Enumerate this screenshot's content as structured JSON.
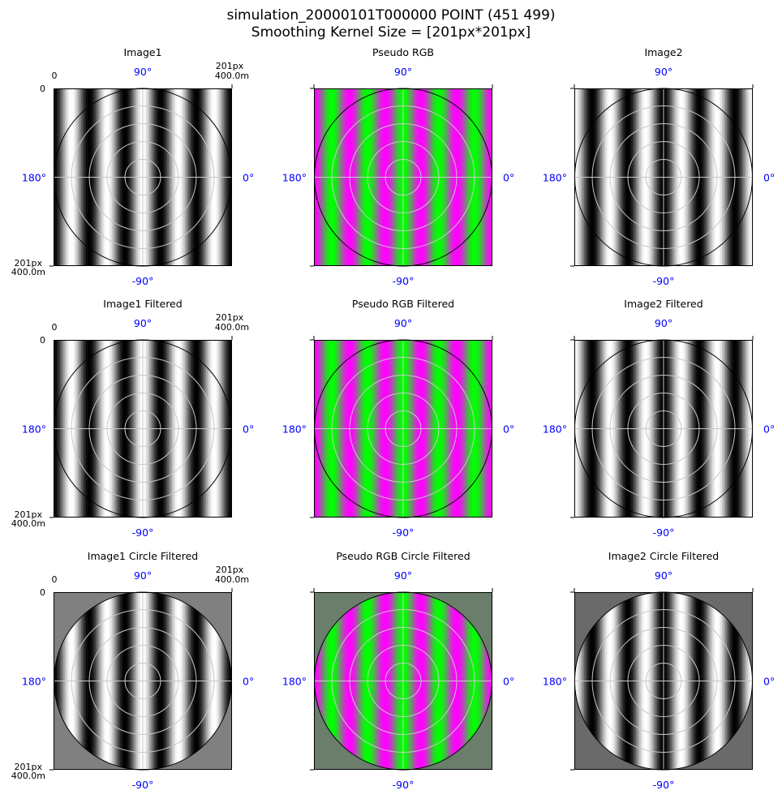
{
  "figure": {
    "title_line1": "simulation_20000101T000000 POINT (451 499)",
    "title_line2": "Smoothing Kernel Size = [201px*201px]"
  },
  "axis_labels": {
    "top_left": "0",
    "top_right_px": "201px",
    "top_right_m": "400.0m",
    "left_top": "0",
    "left_bottom_px": "201px",
    "left_bottom_m": "400.0m"
  },
  "polar_labels": {
    "north": "90°",
    "south": "-90°",
    "west": "180°",
    "east": "0°"
  },
  "colors": {
    "polar_label": "#0000ff",
    "circle_outline": "#000000",
    "grid": "#c8c8c8",
    "gray_masked_fill": "#808080",
    "rgb_masked_fill": "#6b7d6b",
    "image2_masked_fill": "#6a6a6a"
  },
  "chart_data": [
    {
      "type": "heatmap",
      "title": "Image1",
      "mode": "gray",
      "shift": 0.5,
      "masked": false,
      "show_extent_labels": true
    },
    {
      "type": "heatmap",
      "title": "Pseudo RGB",
      "mode": "rgb",
      "shift": 0.5,
      "masked": false,
      "show_extent_labels": false
    },
    {
      "type": "heatmap",
      "title": "Image2",
      "mode": "gray",
      "shift": 0.0,
      "masked": false,
      "show_extent_labels": false
    },
    {
      "type": "heatmap",
      "title": "Image1 Filtered",
      "mode": "gray",
      "shift": 0.5,
      "masked": false,
      "show_extent_labels": true
    },
    {
      "type": "heatmap",
      "title": "Pseudo RGB Filtered",
      "mode": "rgb",
      "shift": 0.5,
      "masked": false,
      "show_extent_labels": false
    },
    {
      "type": "heatmap",
      "title": "Image2 Filtered",
      "mode": "gray",
      "shift": 0.0,
      "masked": false,
      "show_extent_labels": false
    },
    {
      "type": "heatmap",
      "title": "Image1 Circle Filtered",
      "mode": "gray",
      "shift": 0.5,
      "masked": true,
      "mask_fill": "gray_masked_fill",
      "show_extent_labels": true
    },
    {
      "type": "heatmap",
      "title": "Pseudo RGB Circle Filtered",
      "mode": "rgb",
      "shift": 0.5,
      "masked": true,
      "mask_fill": "rgb_masked_fill",
      "show_extent_labels": false
    },
    {
      "type": "heatmap",
      "title": "Image2 Circle Filtered",
      "mode": "gray",
      "shift": 0.0,
      "masked": true,
      "mask_fill": "image2_masked_fill",
      "show_extent_labels": false
    }
  ]
}
